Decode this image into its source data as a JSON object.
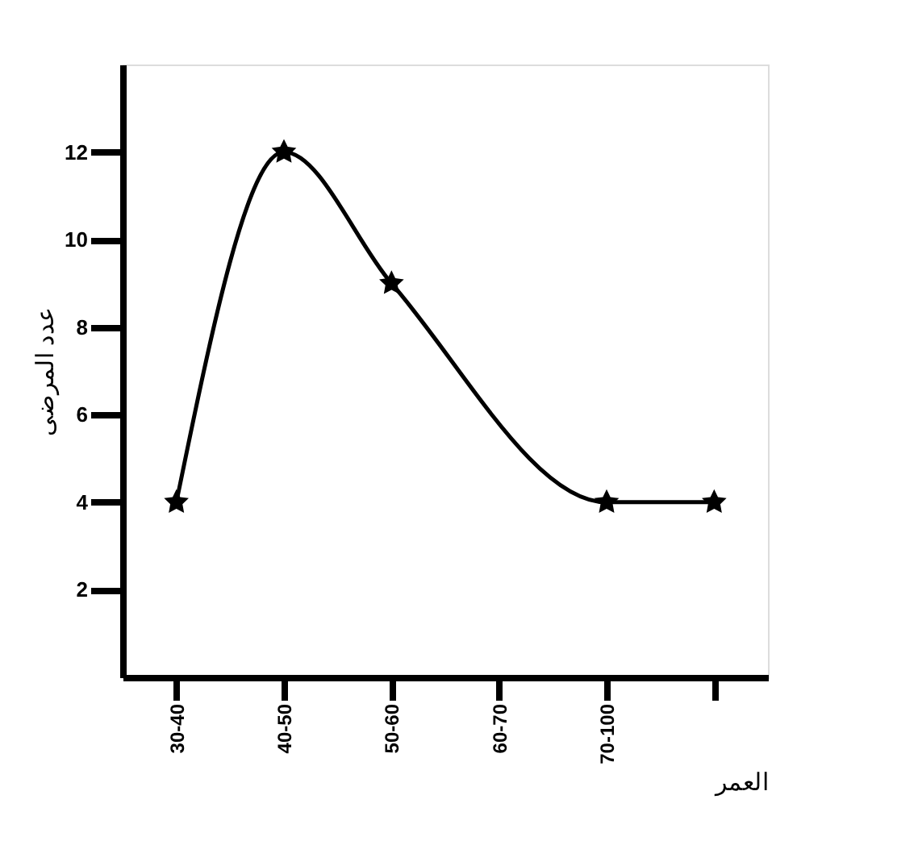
{
  "chart_data": {
    "type": "line",
    "categories": [
      "30-40",
      "40-50",
      "50-60",
      "60-70",
      "70-100",
      null
    ],
    "values": [
      4,
      12,
      9,
      null,
      4,
      4
    ],
    "color": "#000000",
    "xlabel": "العمر",
    "ylabel": "عدد المرضى",
    "ylim": [
      0,
      14
    ],
    "yticks": [
      2,
      4,
      6,
      8,
      10,
      12
    ],
    "marker": "star",
    "line_style": "solid",
    "grid": false
  }
}
